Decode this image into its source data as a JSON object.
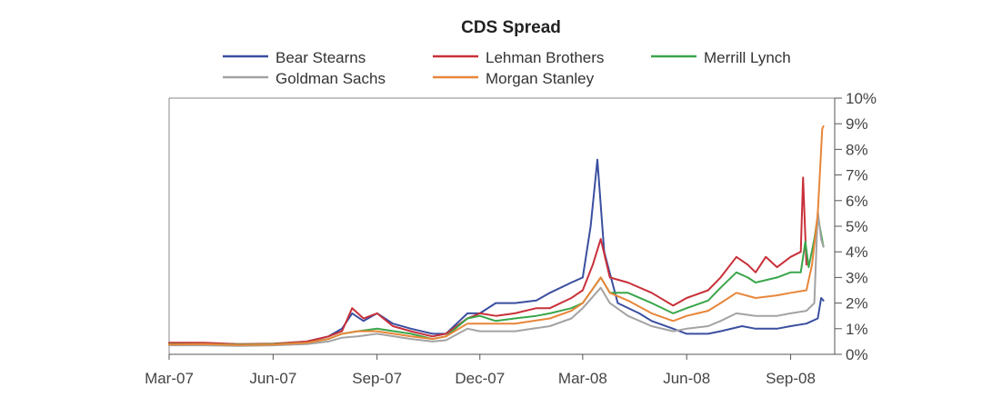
{
  "chart_data": {
    "type": "line",
    "title": "CDS Spread",
    "xlabel": "",
    "ylabel": "",
    "x_tick_labels": [
      "Mar-07",
      "Jun-07",
      "Sep-07",
      "Dec-07",
      "Mar-08",
      "Jun-08",
      "Sep-08"
    ],
    "y_tick_labels": [
      "0%",
      "1%",
      "2%",
      "3%",
      "4%",
      "5%",
      "6%",
      "7%",
      "8%",
      "9%",
      "10%"
    ],
    "xlim": [
      "2007-03-01",
      "2008-10-10"
    ],
    "ylim": [
      0,
      10
    ],
    "y_unit": "%",
    "y_axis_side": "right",
    "grid": false,
    "legend_position": "top",
    "series": [
      {
        "name": "Bear Stearns",
        "color": "#3a4fa0",
        "points": [
          [
            "2007-03-01",
            0.4
          ],
          [
            "2007-04-01",
            0.42
          ],
          [
            "2007-05-01",
            0.38
          ],
          [
            "2007-06-01",
            0.4
          ],
          [
            "2007-07-01",
            0.5
          ],
          [
            "2007-07-20",
            0.7
          ],
          [
            "2007-08-01",
            1.0
          ],
          [
            "2007-08-10",
            1.6
          ],
          [
            "2007-08-20",
            1.3
          ],
          [
            "2007-09-01",
            1.6
          ],
          [
            "2007-09-15",
            1.2
          ],
          [
            "2007-10-01",
            1.0
          ],
          [
            "2007-10-20",
            0.8
          ],
          [
            "2007-11-01",
            0.8
          ],
          [
            "2007-11-20",
            1.6
          ],
          [
            "2007-12-01",
            1.6
          ],
          [
            "2007-12-15",
            2.0
          ],
          [
            "2008-01-01",
            2.0
          ],
          [
            "2008-01-20",
            2.1
          ],
          [
            "2008-02-01",
            2.4
          ],
          [
            "2008-02-20",
            2.8
          ],
          [
            "2008-03-01",
            3.0
          ],
          [
            "2008-03-08",
            5.0
          ],
          [
            "2008-03-14",
            7.6
          ],
          [
            "2008-03-20",
            4.0
          ],
          [
            "2008-04-01",
            2.0
          ],
          [
            "2008-04-20",
            1.6
          ],
          [
            "2008-05-01",
            1.3
          ],
          [
            "2008-05-20",
            1.0
          ],
          [
            "2008-06-01",
            0.8
          ],
          [
            "2008-06-20",
            0.8
          ],
          [
            "2008-07-01",
            0.9
          ],
          [
            "2008-07-20",
            1.1
          ],
          [
            "2008-08-01",
            1.0
          ],
          [
            "2008-08-20",
            1.0
          ],
          [
            "2008-09-01",
            1.1
          ],
          [
            "2008-09-15",
            1.2
          ],
          [
            "2008-09-25",
            1.4
          ],
          [
            "2008-09-28",
            2.2
          ],
          [
            "2008-09-30",
            2.1
          ]
        ]
      },
      {
        "name": "Lehman Brothers",
        "color": "#c9303a",
        "points": [
          [
            "2007-03-01",
            0.45
          ],
          [
            "2007-04-01",
            0.45
          ],
          [
            "2007-05-01",
            0.4
          ],
          [
            "2007-06-01",
            0.42
          ],
          [
            "2007-07-01",
            0.5
          ],
          [
            "2007-07-20",
            0.7
          ],
          [
            "2007-08-01",
            0.9
          ],
          [
            "2007-08-10",
            1.8
          ],
          [
            "2007-08-20",
            1.4
          ],
          [
            "2007-09-01",
            1.6
          ],
          [
            "2007-09-15",
            1.1
          ],
          [
            "2007-10-01",
            0.9
          ],
          [
            "2007-10-20",
            0.7
          ],
          [
            "2007-11-01",
            0.8
          ],
          [
            "2007-11-20",
            1.4
          ],
          [
            "2007-12-01",
            1.6
          ],
          [
            "2007-12-15",
            1.5
          ],
          [
            "2008-01-01",
            1.6
          ],
          [
            "2008-01-20",
            1.8
          ],
          [
            "2008-02-01",
            1.8
          ],
          [
            "2008-02-20",
            2.2
          ],
          [
            "2008-03-01",
            2.5
          ],
          [
            "2008-03-10",
            3.5
          ],
          [
            "2008-03-17",
            4.5
          ],
          [
            "2008-03-25",
            3.0
          ],
          [
            "2008-04-10",
            2.8
          ],
          [
            "2008-05-01",
            2.4
          ],
          [
            "2008-05-20",
            1.9
          ],
          [
            "2008-06-01",
            2.2
          ],
          [
            "2008-06-20",
            2.5
          ],
          [
            "2008-07-01",
            3.0
          ],
          [
            "2008-07-15",
            3.8
          ],
          [
            "2008-07-25",
            3.5
          ],
          [
            "2008-08-01",
            3.2
          ],
          [
            "2008-08-10",
            3.8
          ],
          [
            "2008-08-20",
            3.4
          ],
          [
            "2008-09-01",
            3.8
          ],
          [
            "2008-09-10",
            4.0
          ],
          [
            "2008-09-12",
            6.9
          ],
          [
            "2008-09-15",
            3.5
          ]
        ]
      },
      {
        "name": "Merrill Lynch",
        "color": "#3aa64a",
        "points": [
          [
            "2007-03-01",
            0.4
          ],
          [
            "2007-04-01",
            0.4
          ],
          [
            "2007-05-01",
            0.38
          ],
          [
            "2007-06-01",
            0.4
          ],
          [
            "2007-07-01",
            0.45
          ],
          [
            "2007-07-20",
            0.6
          ],
          [
            "2007-08-01",
            0.8
          ],
          [
            "2007-08-15",
            0.9
          ],
          [
            "2007-09-01",
            1.0
          ],
          [
            "2007-10-01",
            0.8
          ],
          [
            "2007-10-20",
            0.6
          ],
          [
            "2007-11-01",
            0.7
          ],
          [
            "2007-11-20",
            1.4
          ],
          [
            "2007-12-01",
            1.5
          ],
          [
            "2007-12-15",
            1.3
          ],
          [
            "2008-01-01",
            1.4
          ],
          [
            "2008-01-20",
            1.5
          ],
          [
            "2008-02-01",
            1.6
          ],
          [
            "2008-02-20",
            1.8
          ],
          [
            "2008-03-01",
            2.0
          ],
          [
            "2008-03-17",
            3.0
          ],
          [
            "2008-03-25",
            2.4
          ],
          [
            "2008-04-10",
            2.4
          ],
          [
            "2008-05-01",
            2.0
          ],
          [
            "2008-05-20",
            1.6
          ],
          [
            "2008-06-01",
            1.8
          ],
          [
            "2008-06-20",
            2.1
          ],
          [
            "2008-07-01",
            2.6
          ],
          [
            "2008-07-15",
            3.2
          ],
          [
            "2008-07-25",
            3.0
          ],
          [
            "2008-08-01",
            2.8
          ],
          [
            "2008-08-20",
            3.0
          ],
          [
            "2008-09-01",
            3.2
          ],
          [
            "2008-09-10",
            3.2
          ],
          [
            "2008-09-14",
            4.4
          ],
          [
            "2008-09-17",
            3.4
          ],
          [
            "2008-09-22",
            4.5
          ],
          [
            "2008-09-25",
            5.4
          ],
          [
            "2008-09-30",
            4.2
          ]
        ]
      },
      {
        "name": "Goldman Sachs",
        "color": "#a3a3a3",
        "points": [
          [
            "2007-03-01",
            0.35
          ],
          [
            "2007-04-01",
            0.35
          ],
          [
            "2007-05-01",
            0.33
          ],
          [
            "2007-06-01",
            0.35
          ],
          [
            "2007-07-01",
            0.4
          ],
          [
            "2007-07-20",
            0.5
          ],
          [
            "2007-08-01",
            0.65
          ],
          [
            "2007-08-15",
            0.7
          ],
          [
            "2007-09-01",
            0.8
          ],
          [
            "2007-10-01",
            0.6
          ],
          [
            "2007-10-20",
            0.5
          ],
          [
            "2007-11-01",
            0.55
          ],
          [
            "2007-11-20",
            1.0
          ],
          [
            "2007-12-01",
            0.9
          ],
          [
            "2008-01-01",
            0.9
          ],
          [
            "2008-02-01",
            1.1
          ],
          [
            "2008-02-20",
            1.4
          ],
          [
            "2008-03-01",
            1.8
          ],
          [
            "2008-03-17",
            2.6
          ],
          [
            "2008-03-25",
            2.0
          ],
          [
            "2008-04-10",
            1.5
          ],
          [
            "2008-05-01",
            1.1
          ],
          [
            "2008-05-20",
            0.9
          ],
          [
            "2008-06-01",
            1.0
          ],
          [
            "2008-06-20",
            1.1
          ],
          [
            "2008-07-01",
            1.3
          ],
          [
            "2008-07-15",
            1.6
          ],
          [
            "2008-08-01",
            1.5
          ],
          [
            "2008-08-20",
            1.5
          ],
          [
            "2008-09-01",
            1.6
          ],
          [
            "2008-09-15",
            1.7
          ],
          [
            "2008-09-22",
            2.0
          ],
          [
            "2008-09-25",
            5.6
          ],
          [
            "2008-09-28",
            4.5
          ],
          [
            "2008-09-30",
            4.2
          ]
        ]
      },
      {
        "name": "Morgan Stanley",
        "color": "#e8863a",
        "points": [
          [
            "2007-03-01",
            0.38
          ],
          [
            "2007-04-01",
            0.4
          ],
          [
            "2007-05-01",
            0.36
          ],
          [
            "2007-06-01",
            0.38
          ],
          [
            "2007-07-01",
            0.45
          ],
          [
            "2007-07-20",
            0.6
          ],
          [
            "2007-08-01",
            0.8
          ],
          [
            "2007-08-15",
            0.9
          ],
          [
            "2007-09-01",
            0.9
          ],
          [
            "2007-10-01",
            0.7
          ],
          [
            "2007-10-20",
            0.6
          ],
          [
            "2007-11-01",
            0.7
          ],
          [
            "2007-11-20",
            1.2
          ],
          [
            "2007-12-01",
            1.2
          ],
          [
            "2008-01-01",
            1.2
          ],
          [
            "2008-02-01",
            1.4
          ],
          [
            "2008-02-20",
            1.7
          ],
          [
            "2008-03-01",
            2.0
          ],
          [
            "2008-03-17",
            3.0
          ],
          [
            "2008-03-25",
            2.4
          ],
          [
            "2008-04-10",
            2.1
          ],
          [
            "2008-05-01",
            1.6
          ],
          [
            "2008-05-20",
            1.3
          ],
          [
            "2008-06-01",
            1.5
          ],
          [
            "2008-06-20",
            1.7
          ],
          [
            "2008-07-01",
            2.0
          ],
          [
            "2008-07-15",
            2.4
          ],
          [
            "2008-08-01",
            2.2
          ],
          [
            "2008-08-20",
            2.3
          ],
          [
            "2008-09-01",
            2.4
          ],
          [
            "2008-09-15",
            2.5
          ],
          [
            "2008-09-20",
            3.5
          ],
          [
            "2008-09-25",
            5.5
          ],
          [
            "2008-09-29",
            8.8
          ],
          [
            "2008-09-30",
            8.9
          ]
        ]
      }
    ]
  }
}
